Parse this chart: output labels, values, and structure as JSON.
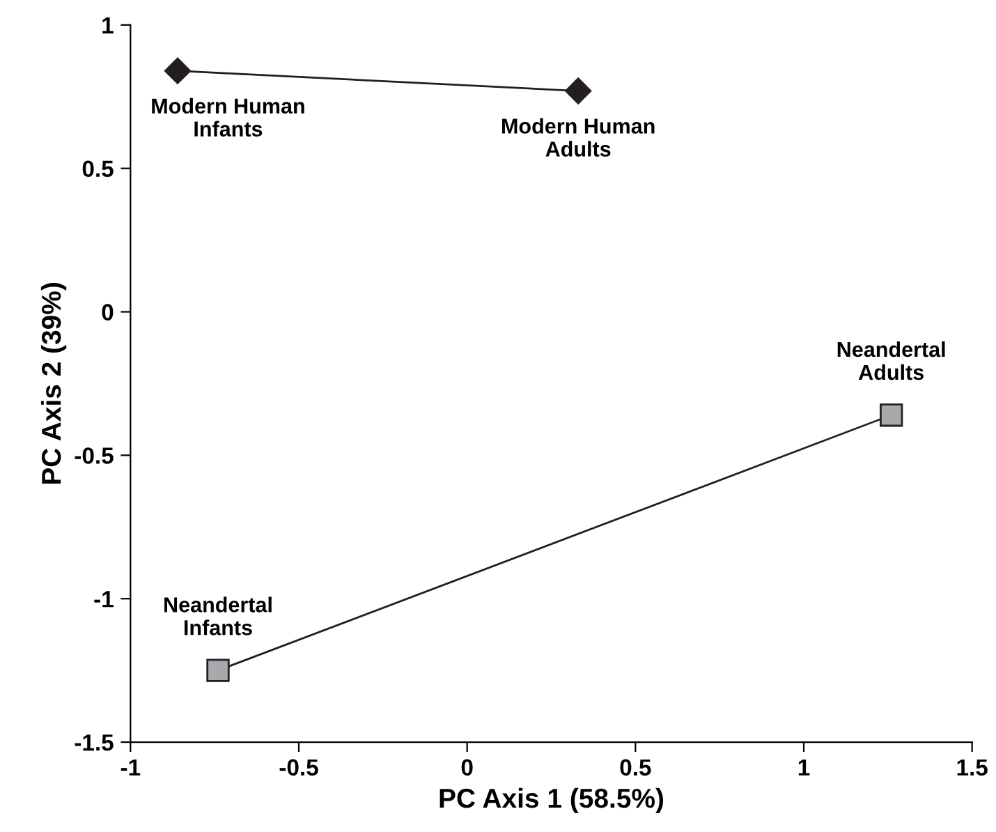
{
  "chart_data": {
    "type": "line",
    "xlabel": "PC Axis 1 (58.5%)",
    "ylabel": "PC Axis 2 (39%)",
    "series": [
      {
        "color": "#231f20",
        "marker": "diamond",
        "x": [
          -0.86,
          0.33
        ],
        "values": [
          0.84,
          0.77
        ]
      },
      {
        "color": "#a7a9ac",
        "marker": "square",
        "x": [
          -0.74,
          1.26
        ],
        "values": [
          -1.25,
          -0.36
        ]
      }
    ],
    "annotations": [
      {
        "text": "Modern Human\nInfants",
        "x": -0.86,
        "y": 0.84
      },
      {
        "text": "Modern Human\nAdults",
        "x": 0.33,
        "y": 0.77
      },
      {
        "text": "Neandertal\nInfants",
        "x": -0.74,
        "y": -1.25
      },
      {
        "text": "Neandertal\nAdults",
        "x": 1.26,
        "y": -0.36
      }
    ],
    "xlim": [
      -1,
      1.5
    ],
    "xticks": [
      -1,
      -0.5,
      0,
      0.5,
      1,
      1.5
    ],
    "ylim": [
      -1.5,
      1
    ],
    "yticks": [
      -1.5,
      -1,
      -0.5,
      0,
      0.5,
      1
    ],
    "grid": false,
    "legend": false,
    "line_style": "solid"
  }
}
